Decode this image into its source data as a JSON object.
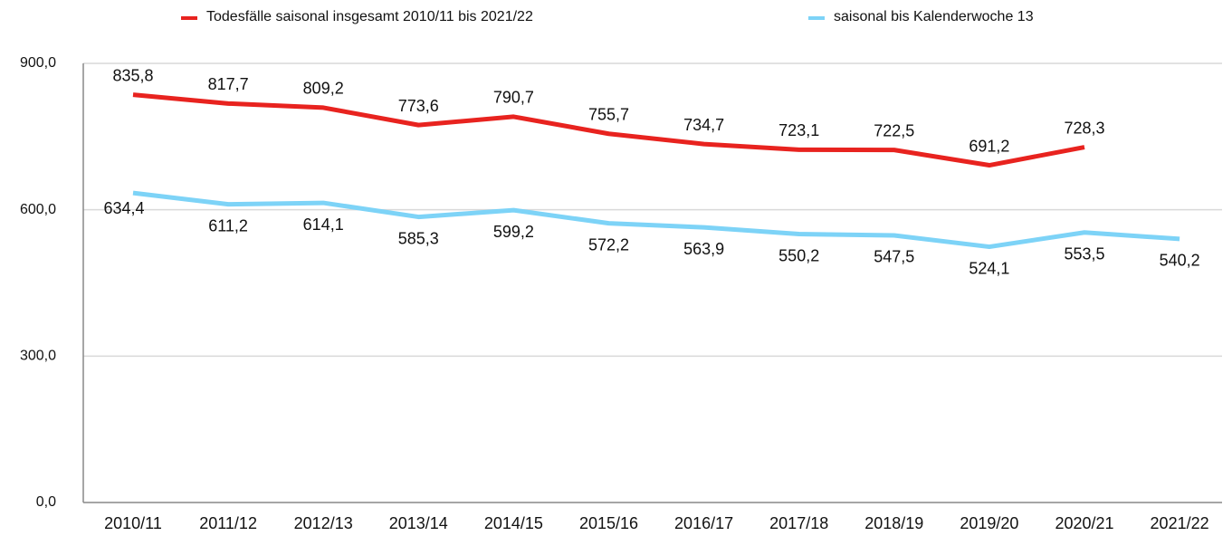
{
  "chart_data": {
    "type": "line",
    "categories": [
      "2010/11",
      "2011/12",
      "2012/13",
      "2013/14",
      "2014/15",
      "2015/16",
      "2016/17",
      "2017/18",
      "2018/19",
      "2019/20",
      "2020/21",
      "2021/22"
    ],
    "series": [
      {
        "name": "Todesfälle saisonal insgesamt 2010/11 bis 2021/22",
        "color": "#e8231f",
        "values": [
          835.8,
          817.7,
          809.2,
          773.6,
          790.7,
          755.7,
          734.7,
          723.1,
          722.5,
          691.2,
          728.3,
          null
        ],
        "value_labels": [
          "835,8",
          "817,7",
          "809,2",
          "773,6",
          "790,7",
          "755,7",
          "734,7",
          "723,1",
          "722,5",
          "691,2",
          "728,3",
          null
        ]
      },
      {
        "name": "saisonal bis Kalenderwoche 13",
        "color": "#7dd3f7",
        "values": [
          634.4,
          611.2,
          614.1,
          585.3,
          599.2,
          572.2,
          563.9,
          550.2,
          547.5,
          524.1,
          553.5,
          540.2
        ],
        "value_labels": [
          "634,4",
          "611,2",
          "614,1",
          "585,3",
          "599,2",
          "572,2",
          "563,9",
          "550,2",
          "547,5",
          "524,1",
          "553,5",
          "540,2"
        ]
      }
    ],
    "ylim": [
      0,
      900
    ],
    "yticks": [
      {
        "value": 0,
        "label": "0,0"
      },
      {
        "value": 300,
        "label": "300,0"
      },
      {
        "value": 600,
        "label": "600,0"
      },
      {
        "value": 900,
        "label": "900,0"
      }
    ],
    "grid": true,
    "legend": "top"
  }
}
